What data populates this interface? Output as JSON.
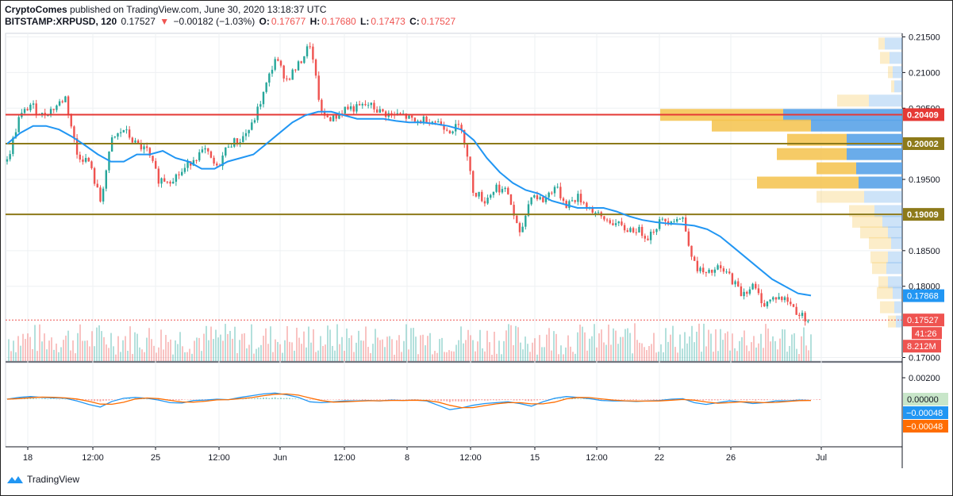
{
  "header": {
    "line1_author": "CryptoComes",
    "line1_rest": "published on TradingView.com, June 30, 2020 13:18:37 UTC",
    "symbol": "BITSTAMP:XRPUSD, 120",
    "last": "0.17527",
    "change": "−0.00182 (−1.03%)",
    "o_label": "O:",
    "o": "0.17677",
    "h_label": "H:",
    "h": "0.17680",
    "l_label": "L:",
    "l": "0.17473",
    "c_label": "C:",
    "c": "0.17527"
  },
  "footer": {
    "brand": "TradingView",
    "icon": "tradingview-logo-icon"
  },
  "colors": {
    "up": "#26a69a",
    "down": "#ef5350",
    "ma": "#2196f3",
    "red_line": "#e53935",
    "olive_line": "#8d7a1a",
    "macd": "#2196f3",
    "signal": "#ff6d00",
    "vp_up": "#f5c24b",
    "vp_down": "#5aa3e8"
  },
  "chart_data": {
    "type": "candlestick",
    "symbol": "BITSTAMP:XRPUSD",
    "interval": "120",
    "ylim": [
      0.1695,
      0.2155
    ],
    "y_ticks": [
      "0.21500",
      "0.21000",
      "0.20500",
      "0.19500",
      "0.18500",
      "0.18000",
      "0.17000"
    ],
    "x_ticks": [
      "18",
      "12:00",
      "25",
      "12:00",
      "Jun",
      "12:00",
      "8",
      "12:00",
      "15",
      "12:00",
      "22",
      "26",
      "Jul"
    ],
    "horizontal_lines": [
      {
        "value": 0.20409,
        "label": "0.20409",
        "color": "#e53935"
      },
      {
        "value": 0.20002,
        "label": "0.20002",
        "color": "#8d7a1a"
      },
      {
        "value": 0.19009,
        "label": "0.19009",
        "color": "#8d7a1a"
      }
    ],
    "price_labels": [
      {
        "value": 0.17868,
        "label": "0.17868",
        "color": "#2196f3"
      },
      {
        "value": 0.17527,
        "label": "0.17527",
        "color": "#ef5350"
      }
    ],
    "countdown_label": "41:26",
    "volume_label": "8.212M",
    "close_path": [
      0.1975,
      0.2035,
      0.2055,
      0.204,
      0.205,
      0.2065,
      0.1985,
      0.1975,
      0.192,
      0.2005,
      0.202,
      0.2,
      0.199,
      0.195,
      0.195,
      0.196,
      0.198,
      0.199,
      0.1965,
      0.2,
      0.2005,
      0.2025,
      0.207,
      0.212,
      0.209,
      0.211,
      0.214,
      0.204,
      0.2035,
      0.205,
      0.205,
      0.2055,
      0.2045,
      0.204,
      0.204,
      0.203,
      0.2035,
      0.203,
      0.202,
      0.2025,
      0.1935,
      0.192,
      0.194,
      0.193,
      0.187,
      0.193,
      0.192,
      0.194,
      0.1915,
      0.1925,
      0.191,
      0.1895,
      0.189,
      0.188,
      0.188,
      0.187,
      0.189,
      0.1895,
      0.1895,
      0.183,
      0.1815,
      0.1825,
      0.1815,
      0.179,
      0.18,
      0.1775,
      0.1785,
      0.178,
      0.176,
      0.1753
    ],
    "ma_path": [
      0.2,
      0.2015,
      0.2025,
      0.2025,
      0.202,
      0.201,
      0.1998,
      0.1985,
      0.1975,
      0.1975,
      0.1985,
      0.1985,
      0.199,
      0.198,
      0.1975,
      0.1965,
      0.1965,
      0.1975,
      0.198,
      0.1985,
      0.2,
      0.2015,
      0.203,
      0.204,
      0.2045,
      0.2045,
      0.204,
      0.2035,
      0.2035,
      0.2035,
      0.2032,
      0.203,
      0.203,
      0.2028,
      0.2025,
      0.202,
      0.2005,
      0.198,
      0.196,
      0.1945,
      0.1935,
      0.193,
      0.192,
      0.1915,
      0.191,
      0.191,
      0.191,
      0.1905,
      0.1898,
      0.1893,
      0.189,
      0.1888,
      0.1887,
      0.1885,
      0.188,
      0.187,
      0.1855,
      0.184,
      0.1825,
      0.181,
      0.18,
      0.179,
      0.1787
    ],
    "macd_path": [
      0.0,
      0.0004,
      0.0006,
      0.0004,
      0.0003,
      0.0002,
      -0.0004,
      -0.0012,
      -0.0018,
      -0.0005,
      0.0002,
      0.0004,
      0.0002,
      -0.0002,
      -0.0008,
      -0.0009,
      -0.0003,
      -0.0002,
      0.0,
      -0.0001,
      0.0004,
      0.0008,
      0.0012,
      0.0014,
      0.001,
      0.0004,
      -0.0006,
      -0.0008,
      -0.0006,
      -0.0004,
      -0.0004,
      -0.0003,
      -0.0004,
      -0.0002,
      -0.0003,
      -0.0002,
      -0.0004,
      -0.0014,
      -0.0024,
      -0.002,
      -0.0014,
      -0.001,
      -0.0008,
      -0.0006,
      -0.001,
      -0.0016,
      -0.0006,
      0.0002,
      0.0006,
      0.0004,
      0.0001,
      -0.0003,
      -0.0004,
      -0.0004,
      -0.0005,
      -0.0004,
      -0.0003,
      0.0,
      0.0001,
      -0.0008,
      -0.0012,
      -0.0008,
      -0.0004,
      -0.0006,
      -0.001,
      -0.0008,
      -0.0004,
      -0.0004,
      -0.0002,
      -0.0003
    ],
    "macd_value": "0.00000",
    "macd_label_blue": "−0.00048",
    "macd_label_orange": "−0.00048",
    "macd_ticks": [
      "0.00200"
    ]
  }
}
